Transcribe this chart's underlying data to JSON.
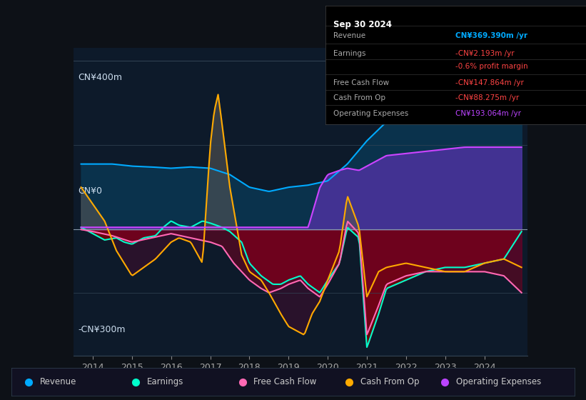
{
  "bg_color": "#0d1117",
  "chart_bg": "#0d1a2a",
  "y_label_top": "CN¥400m",
  "y_label_zero": "CN¥0",
  "y_label_bot": "-CN¥300m",
  "ylim": [
    -300,
    430
  ],
  "xlim_start": 2013.5,
  "xlim_end": 2025.1,
  "x_ticks": [
    2014,
    2015,
    2016,
    2017,
    2018,
    2019,
    2020,
    2021,
    2022,
    2023,
    2024
  ],
  "legend": [
    {
      "label": "Revenue",
      "color": "#00aaff"
    },
    {
      "label": "Earnings",
      "color": "#00ffcc"
    },
    {
      "label": "Free Cash Flow",
      "color": "#ff69b4"
    },
    {
      "label": "Cash From Op",
      "color": "#ffaa00"
    },
    {
      "label": "Operating Expenses",
      "color": "#bb44ff"
    }
  ],
  "tooltip": {
    "date": "Sep 30 2024",
    "rows": [
      {
        "label": "Revenue",
        "value": "CN¥369.390m /yr",
        "value_color": "#00aaff"
      },
      {
        "label": "Earnings",
        "value": "-CN¥2.193m /yr",
        "value_color": "#ff4444"
      },
      {
        "label": "",
        "value": "-0.6% profit margin",
        "value_color": "#ff4444"
      },
      {
        "label": "Free Cash Flow",
        "value": "-CN¥147.864m /yr",
        "value_color": "#ff4444"
      },
      {
        "label": "Cash From Op",
        "value": "-CN¥88.275m /yr",
        "value_color": "#ff4444"
      },
      {
        "label": "Operating Expenses",
        "value": "CN¥193.064m /yr",
        "value_color": "#bb44ff"
      }
    ]
  }
}
